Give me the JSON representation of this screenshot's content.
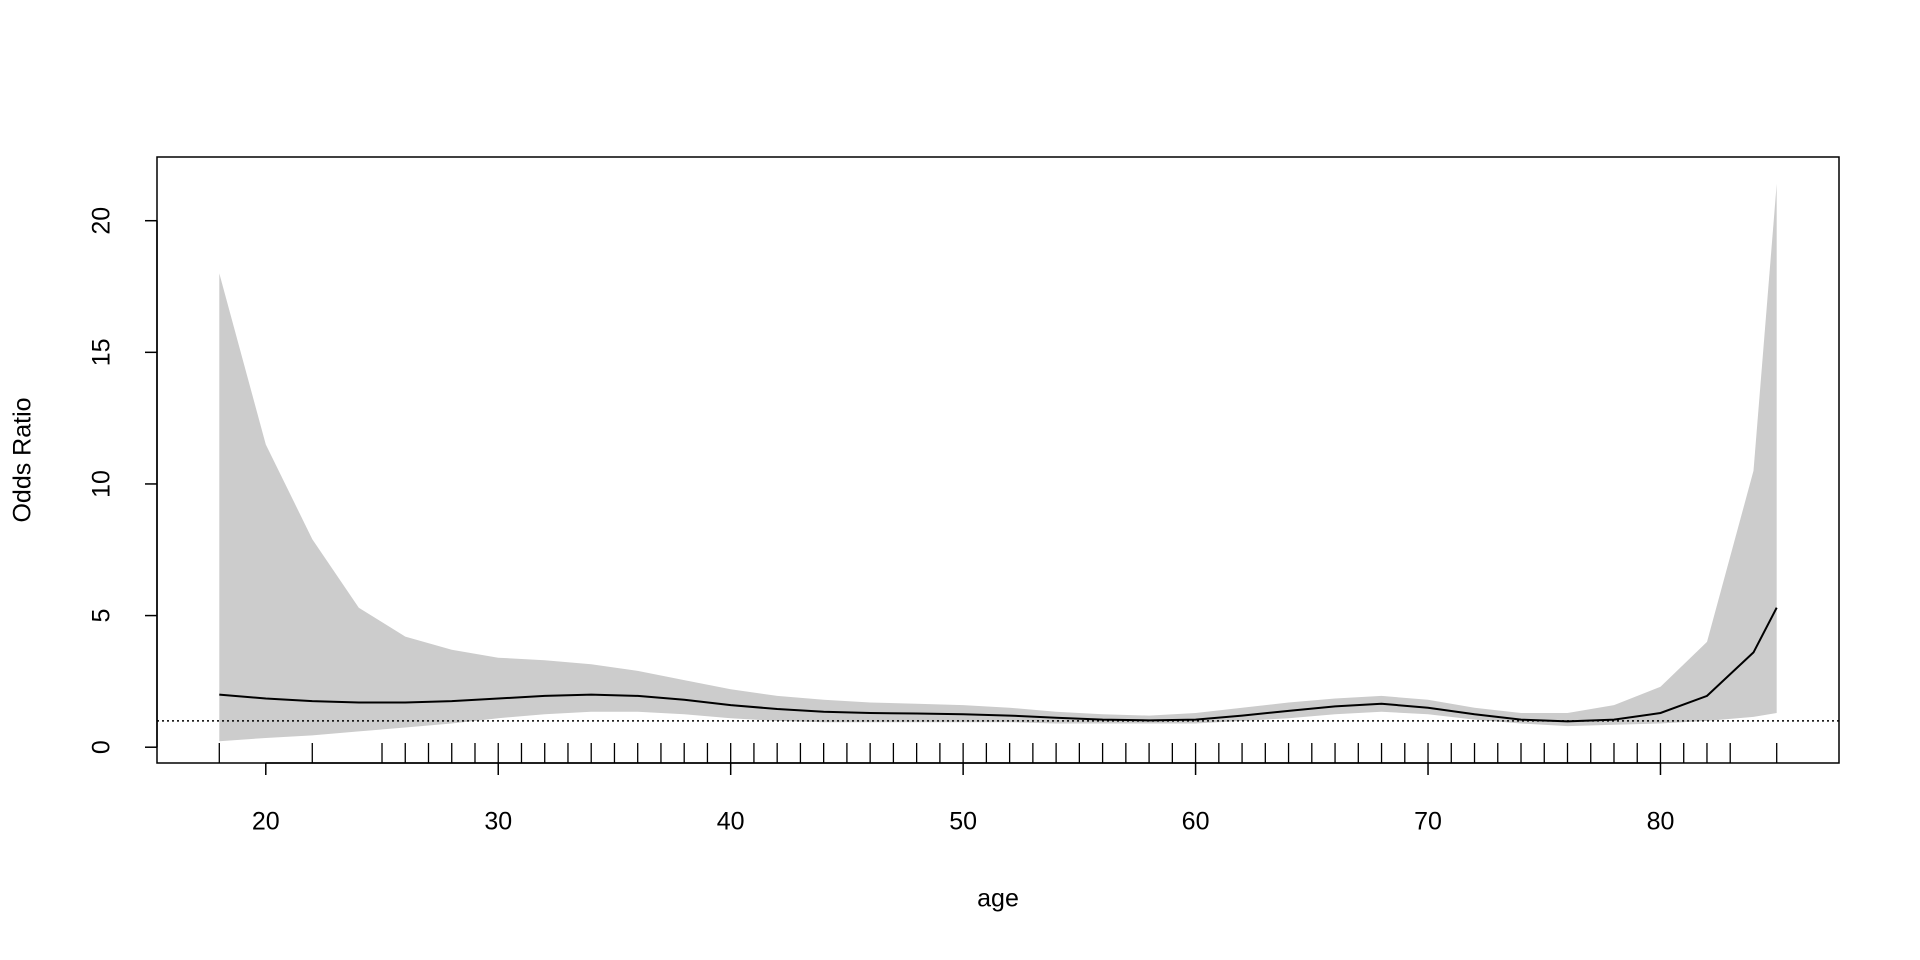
{
  "chart_data": {
    "type": "line",
    "xlabel": "age",
    "ylabel": "Odds Ratio",
    "x": [
      18,
      20,
      22,
      24,
      26,
      28,
      30,
      32,
      34,
      36,
      38,
      40,
      42,
      44,
      46,
      48,
      50,
      52,
      54,
      56,
      58,
      60,
      62,
      64,
      66,
      68,
      70,
      72,
      74,
      76,
      78,
      80,
      82,
      84,
      85
    ],
    "fit": [
      2.0,
      1.85,
      1.75,
      1.7,
      1.7,
      1.75,
      1.85,
      1.95,
      2.0,
      1.95,
      1.8,
      1.6,
      1.45,
      1.35,
      1.3,
      1.28,
      1.25,
      1.2,
      1.12,
      1.05,
      1.02,
      1.05,
      1.2,
      1.38,
      1.55,
      1.65,
      1.5,
      1.25,
      1.05,
      0.98,
      1.05,
      1.3,
      1.95,
      3.6,
      5.3
    ],
    "lower": [
      0.23,
      0.35,
      0.45,
      0.6,
      0.75,
      0.9,
      1.1,
      1.25,
      1.35,
      1.35,
      1.25,
      1.1,
      1.0,
      0.95,
      0.95,
      0.95,
      0.95,
      0.95,
      0.9,
      0.9,
      0.9,
      0.9,
      1.0,
      1.1,
      1.25,
      1.35,
      1.25,
      1.05,
      0.9,
      0.8,
      0.85,
      0.9,
      1.0,
      1.15,
      1.3
    ],
    "upper": [
      18.0,
      11.5,
      7.9,
      5.3,
      4.2,
      3.7,
      3.4,
      3.3,
      3.15,
      2.9,
      2.55,
      2.2,
      1.95,
      1.8,
      1.7,
      1.65,
      1.6,
      1.5,
      1.35,
      1.25,
      1.2,
      1.3,
      1.5,
      1.7,
      1.85,
      1.95,
      1.8,
      1.5,
      1.3,
      1.3,
      1.6,
      2.3,
      4.0,
      10.5,
      21.4
    ],
    "line_color": "#000000",
    "band_color": "#cccccc",
    "reference_line": 1,
    "rug": [
      18,
      22,
      25,
      26,
      27,
      28,
      29,
      30,
      31,
      32,
      33,
      34,
      35,
      36,
      37,
      38,
      39,
      40,
      41,
      42,
      43,
      44,
      45,
      46,
      47,
      48,
      49,
      50,
      51,
      52,
      53,
      54,
      55,
      56,
      57,
      58,
      59,
      60,
      61,
      62,
      63,
      64,
      65,
      66,
      67,
      68,
      69,
      70,
      71,
      72,
      73,
      74,
      75,
      76,
      77,
      78,
      79,
      80,
      81,
      82,
      83,
      85
    ],
    "xlim": [
      15.32,
      87.68
    ],
    "ylim": [
      -0.6,
      22.42
    ],
    "xticks": [
      20,
      30,
      40,
      50,
      60,
      70,
      80
    ],
    "yticks": [
      0,
      5,
      10,
      15,
      20
    ]
  }
}
